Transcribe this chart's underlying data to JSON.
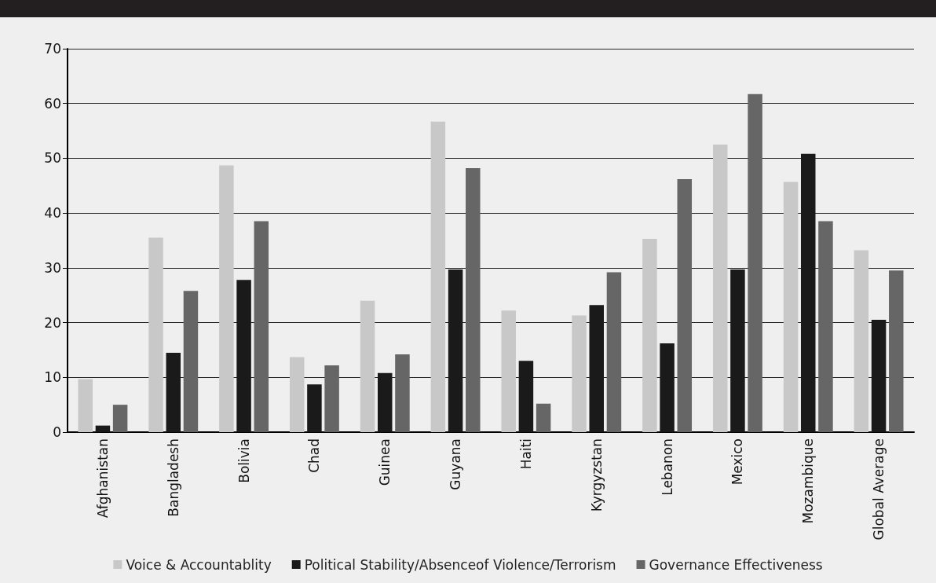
{
  "chart_data": {
    "type": "bar",
    "categories": [
      "Afghanistan",
      "Bangladesh",
      "Bolivia",
      "Chad",
      "Guinea",
      "Guyana",
      "Haiti",
      "Kyrgyzstan",
      "Lebanon",
      "Mexico",
      "Mozambique",
      "Global Average"
    ],
    "series": [
      {
        "name": "Voice & Accountablity",
        "color": "#c8c8c8",
        "values": [
          9.7,
          35.5,
          48.7,
          13.7,
          24,
          56.7,
          22.2,
          21.3,
          35.3,
          52.5,
          45.7,
          33.2
        ]
      },
      {
        "name": "Political Stability/Absenceof Violence/Terrorism",
        "color": "#1a1a1a",
        "values": [
          1.2,
          14.5,
          27.8,
          8.7,
          10.8,
          29.7,
          13,
          23.2,
          16.2,
          29.7,
          50.8,
          20.5
        ]
      },
      {
        "name": "Governance Effectiveness",
        "color": "#666666",
        "values": [
          5,
          25.8,
          38.5,
          12.2,
          14.2,
          48.2,
          5.2,
          29.2,
          46.2,
          61.7,
          38.5,
          29.5
        ]
      }
    ],
    "ylim": [
      0,
      70
    ],
    "yticks": [
      0,
      10,
      20,
      30,
      40,
      50,
      60,
      70
    ],
    "grid": "y",
    "legend": "bottom"
  }
}
